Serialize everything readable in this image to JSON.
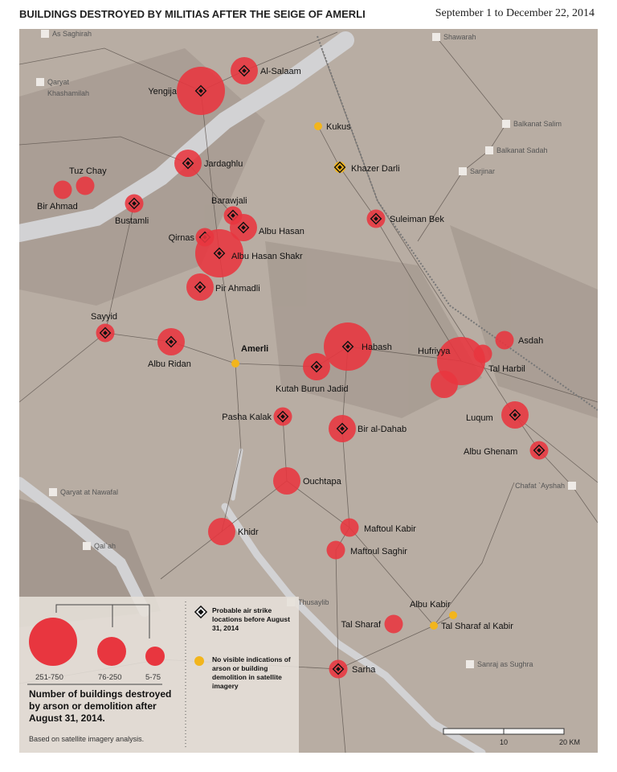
{
  "title": "BUILDINGS DESTROYED BY MILITIAS AFTER THE SEIGE OF AMERLI",
  "subtitle": "September 1 to December 22, 2014",
  "colors": {
    "destroyed": "#e8363f",
    "no_indication": "#f2b51c",
    "background": "#b8ada3",
    "water": "#d2d2d4"
  },
  "destroyed_sites": [
    {
      "name": "Yengija",
      "size": "251-750",
      "airstrike": true
    },
    {
      "name": "Al-Salaam",
      "size": "76-250",
      "airstrike": true
    },
    {
      "name": "Jardaghlu",
      "size": "76-250",
      "airstrike": true
    },
    {
      "name": "Tuz Chay",
      "size": "5-75",
      "airstrike": false
    },
    {
      "name": "Bir Ahmad",
      "size": "5-75",
      "airstrike": false
    },
    {
      "name": "Bustamli",
      "size": "5-75",
      "airstrike": true
    },
    {
      "name": "Barawjali",
      "size": "5-75",
      "airstrike": true
    },
    {
      "name": "Albu Hasan",
      "size": "76-250",
      "airstrike": true
    },
    {
      "name": "Qirnas",
      "size": "5-75",
      "airstrike": true
    },
    {
      "name": "Albu Hasan Shakr",
      "size": "251-750",
      "airstrike": true
    },
    {
      "name": "Pir Ahmadli",
      "size": "76-250",
      "airstrike": true
    },
    {
      "name": "Suleiman Bek",
      "size": "5-75",
      "airstrike": true
    },
    {
      "name": "Sayyid",
      "size": "5-75",
      "airstrike": true
    },
    {
      "name": "Albu Ridan",
      "size": "76-250",
      "airstrike": true
    },
    {
      "name": "Habash",
      "size": "251-750",
      "airstrike": true
    },
    {
      "name": "Kutah Burun Jadid",
      "size": "76-250",
      "airstrike": true
    },
    {
      "name": "Hufriyya",
      "size": "251-750",
      "airstrike": false
    },
    {
      "name": "Tal Harbil",
      "size": "5-75",
      "airstrike": false
    },
    {
      "name": "Asdah",
      "size": "5-75",
      "airstrike": false
    },
    {
      "name": "",
      "size": "76-250",
      "airstrike": false
    },
    {
      "name": "Pasha Kalak",
      "size": "5-75",
      "airstrike": true
    },
    {
      "name": "Bir al-Dahab",
      "size": "76-250",
      "airstrike": true
    },
    {
      "name": "Luqum",
      "size": "76-250",
      "airstrike": true
    },
    {
      "name": "Albu Ghenam",
      "size": "5-75",
      "airstrike": true
    },
    {
      "name": "Ouchtapa",
      "size": "76-250",
      "airstrike": false
    },
    {
      "name": "Khidr",
      "size": "76-250",
      "airstrike": false
    },
    {
      "name": "Maftoul Kabir",
      "size": "5-75",
      "airstrike": false
    },
    {
      "name": "Maftoul Saghir",
      "size": "5-75",
      "airstrike": false
    },
    {
      "name": "Tal Sharaf",
      "size": "5-75",
      "airstrike": false
    },
    {
      "name": "Sarha",
      "size": "5-75",
      "airstrike": true
    }
  ],
  "no_indication_sites": [
    {
      "name": "Kukus",
      "airstrike": false
    },
    {
      "name": "Amerli",
      "airstrike": false
    },
    {
      "name": "Khazer Darli",
      "airstrike": true
    },
    {
      "name": "Tal Sharaf al Kabir",
      "airstrike": false
    },
    {
      "name": "Albu Kabir",
      "airstrike": false
    }
  ],
  "villages": [
    "As Saghirah",
    "Qaryat",
    "Khashamilah",
    "Shawarah",
    "Balkanat Salim",
    "Balkanat Sadah",
    "Sarjinar",
    "Chafat `Ayshah",
    "Qaryat at Nawafal",
    "Qal`ah",
    "Thusaylib",
    "Sanraj as Sughra"
  ],
  "scale": {
    "ticks": [
      "10",
      "20 KM"
    ]
  },
  "legend": {
    "sizes": [
      "251-750",
      "76-250",
      "5-75"
    ],
    "heading": "Number of buildings destroyed by arson or demolition after August 31, 2014.",
    "note": "Based on satellite imagery analysis.",
    "airstrike": "Probable air strike locations before August 31, 2014",
    "no_indication": "No visible indications of arson or building demolition in satellite imagery"
  }
}
